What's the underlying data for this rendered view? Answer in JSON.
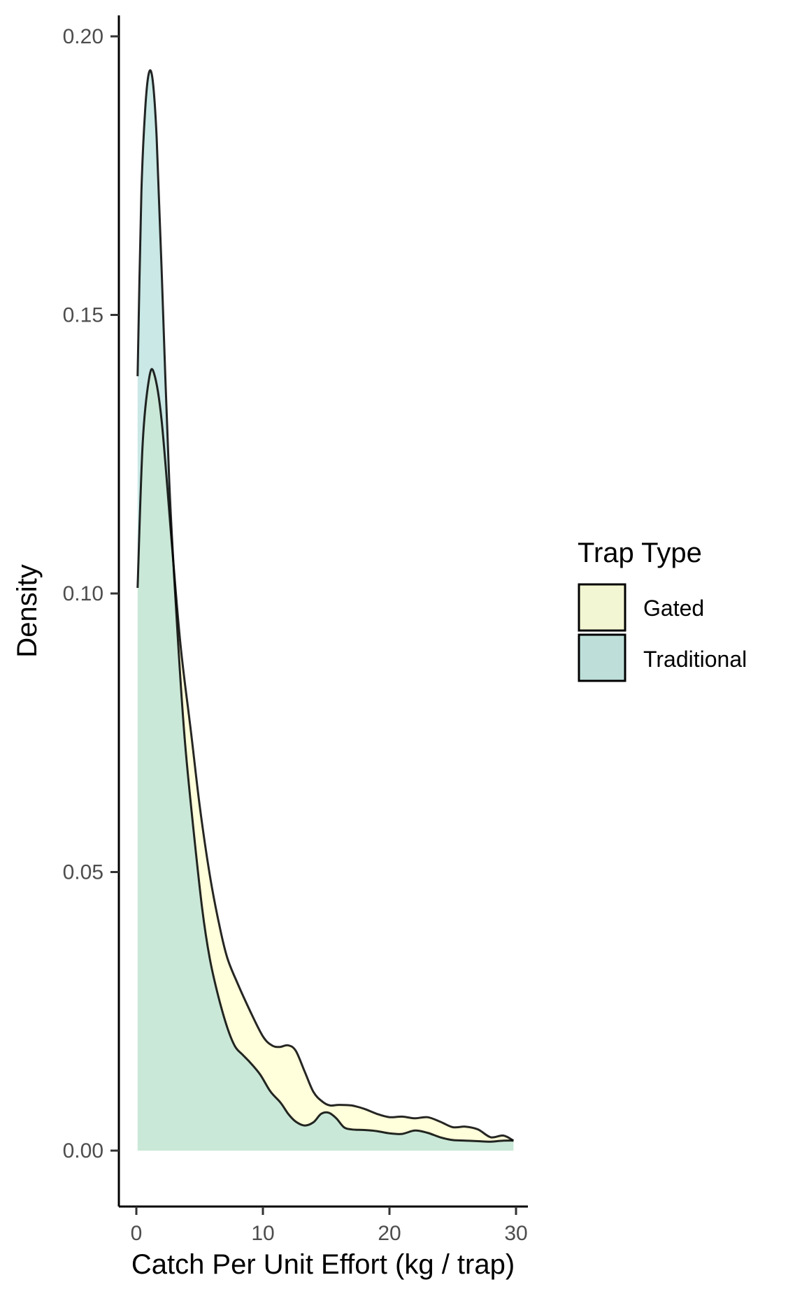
{
  "chart_data": {
    "type": "area",
    "subtype": "overlapping density",
    "xlabel": "Catch Per Unit Effort (kg / trap)",
    "ylabel": "Density",
    "xlim": [
      -1.4,
      31.3
    ],
    "ylim": [
      -0.0098,
      0.204
    ],
    "x_ticks": [
      0,
      10,
      20,
      30
    ],
    "x_tick_labels": [
      "0",
      "10",
      "20",
      "30"
    ],
    "y_ticks": [
      0.0,
      0.05,
      0.1,
      0.15,
      0.2
    ],
    "y_tick_labels": [
      "0.00",
      "0.05",
      "0.10",
      "0.15",
      "0.20"
    ],
    "grid": false,
    "legend": {
      "title": "Trap Type",
      "position": "right",
      "entries": [
        "Gated",
        "Traditional"
      ]
    },
    "series": [
      {
        "name": "Gated",
        "fill": "#FFFFCC",
        "fill_opacity": 0.7,
        "x": [
          0.1,
          0.5,
          1.0,
          1.4,
          2.0,
          2.8,
          3.5,
          4.3,
          5.0,
          5.8,
          6.6,
          7.2,
          8.0,
          9.0,
          10.0,
          10.7,
          11.3,
          12.0,
          12.6,
          13.3,
          14.0,
          14.7,
          15.3,
          16.0,
          17.0,
          18.0,
          19.0,
          20.0,
          21.0,
          22.0,
          23.0,
          24.0,
          25.0,
          26.0,
          27.0,
          28.0,
          29.0,
          29.8
        ],
        "y": [
          0.101,
          0.127,
          0.1385,
          0.1395,
          0.131,
          0.109,
          0.0905,
          0.0755,
          0.062,
          0.0495,
          0.04,
          0.0345,
          0.03,
          0.025,
          0.0205,
          0.0189,
          0.0186,
          0.0189,
          0.0179,
          0.0142,
          0.0105,
          0.0088,
          0.0081,
          0.0082,
          0.0081,
          0.0075,
          0.0066,
          0.006,
          0.0061,
          0.0058,
          0.006,
          0.0052,
          0.0042,
          0.0043,
          0.0038,
          0.0024,
          0.0027,
          0.0018
        ]
      },
      {
        "name": "Traditional",
        "fill": "#A6D9D3",
        "fill_opacity": 0.6,
        "x": [
          0.1,
          0.4,
          0.7,
          1.0,
          1.3,
          1.6,
          2.0,
          2.6,
          3.2,
          3.8,
          4.5,
          5.2,
          5.8,
          6.5,
          7.2,
          7.8,
          8.4,
          9.0,
          9.8,
          10.6,
          11.4,
          12.0,
          12.6,
          13.3,
          14.0,
          14.6,
          15.2,
          15.8,
          16.4,
          17.0,
          18.0,
          19.0,
          20.0,
          21.0,
          22.0,
          23.0,
          24.0,
          25.0,
          26.0,
          27.0,
          28.0,
          29.0,
          29.8
        ],
        "y": [
          0.139,
          0.172,
          0.187,
          0.1935,
          0.192,
          0.182,
          0.158,
          0.12,
          0.095,
          0.0745,
          0.058,
          0.0435,
          0.0345,
          0.0275,
          0.022,
          0.0187,
          0.0172,
          0.0158,
          0.0136,
          0.0106,
          0.0086,
          0.0066,
          0.0052,
          0.0045,
          0.0051,
          0.0066,
          0.0068,
          0.0058,
          0.0042,
          0.0038,
          0.0037,
          0.0035,
          0.0031,
          0.003,
          0.0036,
          0.0032,
          0.0024,
          0.0019,
          0.0018,
          0.0017,
          0.0016,
          0.0018,
          0.0018
        ]
      }
    ]
  }
}
